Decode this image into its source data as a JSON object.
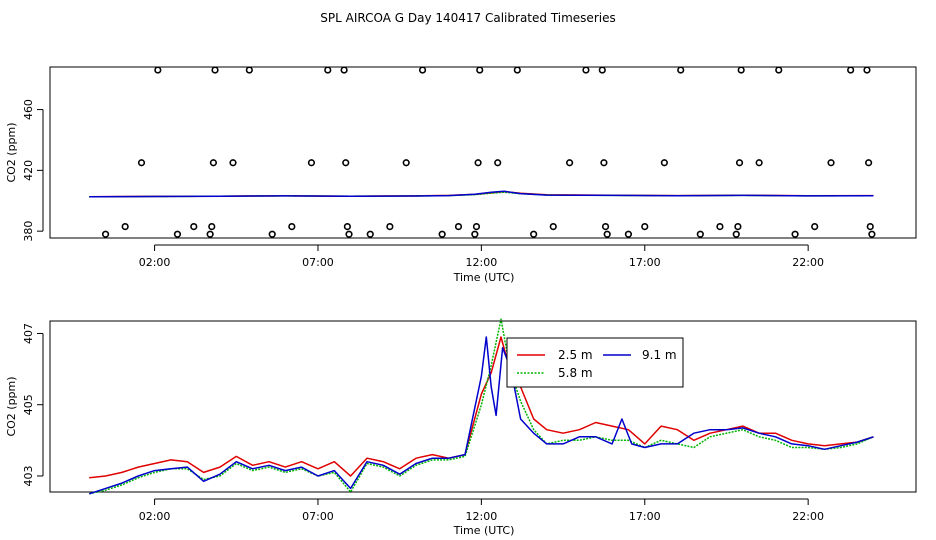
{
  "title": "SPL AIRCOA G  Day 140417  Calibrated Timeseries",
  "colors": {
    "s1": "#e00000",
    "s2": "#00b400",
    "s3": "#0000cc",
    "ink": "#000000"
  },
  "chart_data": [
    {
      "type": "line",
      "ylabel": "CO2 (ppm)",
      "xlabel": "Time (UTC)",
      "xlim": [
        -1.2,
        25.3
      ],
      "ylim": [
        375.5,
        488
      ],
      "xticks": [
        2,
        7,
        12,
        17,
        22
      ],
      "xtick_labels": [
        "02:00",
        "07:00",
        "12:00",
        "17:00",
        "22:00"
      ],
      "yticks": [
        380,
        420,
        460
      ],
      "ytick_labels": [
        "380",
        "420",
        "460"
      ],
      "series": [
        {
          "name": "2.5 m",
          "color": "#e00000",
          "x": [
            0,
            2,
            4,
            6,
            8,
            10,
            11,
            11.8,
            12.3,
            12.7,
            13.2,
            14,
            16,
            18,
            20,
            22,
            24
          ],
          "values": [
            402.7,
            402.9,
            403.0,
            403.3,
            403.0,
            403.2,
            403.5,
            404.2,
            405.2,
            406.0,
            405.0,
            404.0,
            403.6,
            403.4,
            403.6,
            403.3,
            403.4
          ]
        },
        {
          "name": "5.8 m",
          "color": "#00b400",
          "x": [
            0,
            2,
            4,
            6,
            8,
            10,
            11,
            11.8,
            12.3,
            12.7,
            13.2,
            14,
            16,
            18,
            20,
            22,
            24
          ],
          "values": [
            402.6,
            402.8,
            403.0,
            403.2,
            403.0,
            403.1,
            403.4,
            404.0,
            405.0,
            405.6,
            404.6,
            403.8,
            403.5,
            403.3,
            403.5,
            403.2,
            403.3
          ]
        },
        {
          "name": "9.1 m",
          "color": "#0000cc",
          "x": [
            0,
            2,
            4,
            6,
            8,
            10,
            11,
            11.8,
            12.3,
            12.7,
            13.2,
            14,
            16,
            18,
            20,
            22,
            24
          ],
          "values": [
            402.6,
            402.8,
            403.0,
            403.2,
            403.0,
            403.1,
            403.4,
            404.3,
            405.6,
            406.2,
            404.7,
            403.7,
            403.5,
            403.3,
            403.5,
            403.2,
            403.3
          ]
        }
      ],
      "markers": {
        "symbol": "open circle",
        "points": [
          [
            0.5,
            378
          ],
          [
            1.1,
            383
          ],
          [
            1.6,
            425
          ],
          [
            2.1,
            486
          ],
          [
            2.7,
            378
          ],
          [
            3.2,
            383
          ],
          [
            3.7,
            378
          ],
          [
            3.75,
            383
          ],
          [
            3.8,
            425
          ],
          [
            3.85,
            486
          ],
          [
            4.4,
            425
          ],
          [
            4.9,
            486
          ],
          [
            5.6,
            378
          ],
          [
            6.2,
            383
          ],
          [
            6.8,
            425
          ],
          [
            7.3,
            486
          ],
          [
            7.8,
            486
          ],
          [
            7.85,
            425
          ],
          [
            7.9,
            383
          ],
          [
            7.95,
            378
          ],
          [
            8.6,
            378
          ],
          [
            9.2,
            383
          ],
          [
            9.7,
            425
          ],
          [
            10.2,
            486
          ],
          [
            10.8,
            378
          ],
          [
            11.3,
            383
          ],
          [
            11.8,
            378
          ],
          [
            11.85,
            383
          ],
          [
            11.9,
            425
          ],
          [
            11.95,
            486
          ],
          [
            12.5,
            425
          ],
          [
            13.1,
            486
          ],
          [
            13.6,
            378
          ],
          [
            14.2,
            383
          ],
          [
            14.7,
            425
          ],
          [
            15.2,
            486
          ],
          [
            15.7,
            486
          ],
          [
            15.75,
            425
          ],
          [
            15.8,
            383
          ],
          [
            15.85,
            378
          ],
          [
            16.5,
            378
          ],
          [
            17.0,
            383
          ],
          [
            17.6,
            425
          ],
          [
            18.1,
            486
          ],
          [
            18.7,
            378
          ],
          [
            19.3,
            383
          ],
          [
            19.8,
            378
          ],
          [
            19.85,
            383
          ],
          [
            19.9,
            425
          ],
          [
            19.95,
            486
          ],
          [
            20.5,
            425
          ],
          [
            21.1,
            486
          ],
          [
            21.6,
            378
          ],
          [
            22.2,
            383
          ],
          [
            22.7,
            425
          ],
          [
            23.3,
            486
          ],
          [
            23.8,
            486
          ],
          [
            23.85,
            425
          ],
          [
            23.9,
            383
          ],
          [
            23.95,
            378
          ]
        ]
      }
    },
    {
      "type": "line",
      "ylabel": "CO2 (ppm)",
      "xlabel": "Time (UTC)",
      "xlim": [
        -1.2,
        25.3
      ],
      "ylim": [
        402.55,
        407.35
      ],
      "xticks": [
        2,
        7,
        12,
        17,
        22
      ],
      "xtick_labels": [
        "02:00",
        "07:00",
        "12:00",
        "17:00",
        "22:00"
      ],
      "yticks": [
        403,
        405,
        407
      ],
      "ytick_labels": [
        "403",
        "405",
        "407"
      ],
      "legend": {
        "placement": "top-center",
        "entries": [
          "2.5 m",
          "5.8 m",
          "9.1 m"
        ]
      },
      "series": [
        {
          "name": "2.5 m",
          "color": "#e00000",
          "x": [
            0,
            0.5,
            1,
            1.5,
            2,
            2.5,
            3,
            3.5,
            4,
            4.5,
            5,
            5.5,
            6,
            6.5,
            7,
            7.5,
            8,
            8.5,
            9,
            9.5,
            10,
            10.5,
            11,
            11.5,
            12,
            12.3,
            12.6,
            12.9,
            13.2,
            13.6,
            14,
            14.5,
            15,
            15.5,
            16,
            16.5,
            17,
            17.5,
            18,
            18.5,
            19,
            19.5,
            20,
            20.5,
            21,
            21.5,
            22,
            22.5,
            23,
            23.5,
            24
          ],
          "values": [
            402.95,
            403.0,
            403.1,
            403.25,
            403.35,
            403.45,
            403.4,
            403.1,
            403.25,
            403.55,
            403.3,
            403.4,
            403.25,
            403.4,
            403.2,
            403.4,
            403.0,
            403.5,
            403.4,
            403.2,
            403.5,
            403.6,
            403.5,
            403.6,
            405.3,
            405.9,
            406.9,
            405.9,
            405.5,
            404.6,
            404.3,
            404.2,
            404.3,
            404.5,
            404.4,
            404.3,
            403.9,
            404.4,
            404.3,
            404.0,
            404.2,
            404.3,
            404.4,
            404.2,
            404.2,
            404.0,
            403.9,
            403.85,
            403.9,
            403.95,
            404.1
          ]
        },
        {
          "name": "5.8 m",
          "color": "#00b400",
          "x": [
            0,
            0.5,
            1,
            1.5,
            2,
            2.5,
            3,
            3.5,
            4,
            4.5,
            5,
            5.5,
            6,
            6.5,
            7,
            7.5,
            8,
            8.5,
            9,
            9.5,
            10,
            10.5,
            11,
            11.5,
            12,
            12.3,
            12.6,
            12.9,
            13.2,
            13.6,
            14,
            14.5,
            15,
            15.5,
            16,
            16.5,
            17,
            17.5,
            18,
            18.5,
            19,
            19.5,
            20,
            20.5,
            21,
            21.5,
            22,
            22.5,
            23,
            23.5,
            24
          ],
          "values": [
            402.5,
            402.6,
            402.75,
            402.95,
            403.1,
            403.2,
            403.2,
            402.9,
            403.0,
            403.35,
            403.15,
            403.25,
            403.1,
            403.2,
            403.0,
            403.1,
            402.55,
            403.35,
            403.25,
            403.0,
            403.3,
            403.45,
            403.45,
            403.55,
            405.0,
            406.1,
            407.4,
            405.9,
            405.1,
            404.3,
            403.9,
            404.0,
            404.0,
            404.1,
            404.0,
            404.0,
            403.8,
            404.0,
            403.9,
            403.8,
            404.1,
            404.2,
            404.3,
            404.1,
            404.0,
            403.8,
            403.8,
            403.75,
            403.8,
            403.9,
            404.1
          ]
        },
        {
          "name": "9.1 m",
          "color": "#0000cc",
          "x": [
            0,
            0.5,
            1,
            1.5,
            2,
            2.5,
            3,
            3.5,
            4,
            4.5,
            5,
            5.5,
            6,
            6.5,
            7,
            7.5,
            8,
            8.5,
            9,
            9.5,
            10,
            10.5,
            11,
            11.5,
            12,
            12.15,
            12.3,
            12.45,
            12.65,
            12.9,
            13.2,
            13.6,
            14,
            14.5,
            15,
            15.5,
            16,
            16.3,
            16.6,
            17,
            17.5,
            18,
            18.5,
            19,
            19.5,
            20,
            20.5,
            21,
            21.5,
            22,
            22.5,
            23,
            23.5,
            24
          ],
          "values": [
            402.5,
            402.65,
            402.8,
            403.0,
            403.15,
            403.2,
            403.25,
            402.85,
            403.05,
            403.4,
            403.2,
            403.3,
            403.15,
            403.25,
            403.0,
            403.15,
            402.65,
            403.4,
            403.3,
            403.05,
            403.35,
            403.5,
            403.5,
            403.6,
            405.8,
            406.9,
            405.5,
            404.7,
            406.6,
            406.0,
            404.6,
            404.2,
            403.9,
            403.9,
            404.1,
            404.1,
            403.9,
            404.6,
            403.9,
            403.8,
            403.9,
            403.9,
            404.2,
            404.3,
            404.3,
            404.35,
            404.2,
            404.1,
            403.9,
            403.85,
            403.75,
            403.85,
            403.95,
            404.1
          ]
        }
      ]
    }
  ]
}
